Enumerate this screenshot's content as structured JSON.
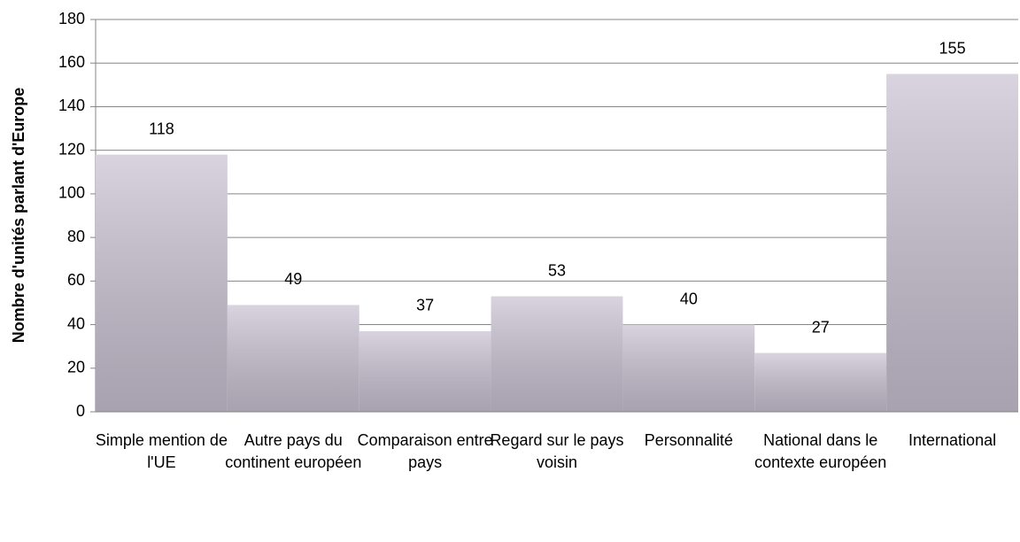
{
  "chart_data": {
    "type": "bar",
    "ylabel": "Nombre d'unités parlant d'Europe",
    "categories": [
      "Simple mention de l'UE",
      "Autre pays du continent européen",
      "Comparaison entre pays",
      "Regard sur le pays voisin",
      "Personnalité",
      "National dans le contexte européen",
      "International"
    ],
    "values": [
      118,
      49,
      37,
      53,
      40,
      27,
      155
    ],
    "color": "#cdc5d6",
    "ylim": [
      0,
      180
    ],
    "yticks": [
      0,
      20,
      40,
      60,
      80,
      100,
      120,
      140,
      160,
      180
    ],
    "grid": true
  }
}
